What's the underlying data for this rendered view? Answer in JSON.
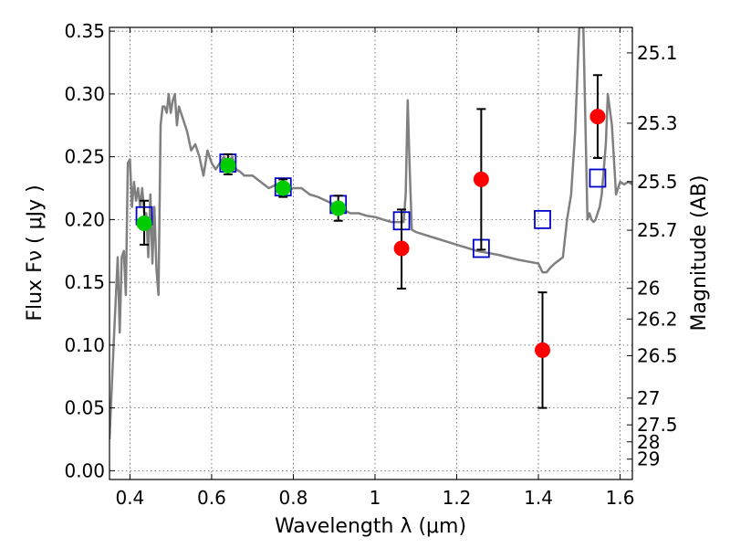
{
  "chart_data": {
    "type": "scatter",
    "title": "",
    "xlabel": "Wavelength  λ (μm)",
    "ylabel": "Flux  Fν  ( μJy )",
    "ylabel_right": "Magnitude (AB)",
    "xlim": [
      0.35,
      1.63
    ],
    "ylim": [
      -0.007,
      0.353
    ],
    "xticks": [
      0.4,
      0.6,
      0.8,
      1.0,
      1.2,
      1.4,
      1.6
    ],
    "xtick_labels": [
      "0.4",
      "0.6",
      "0.8",
      "1",
      "1.2",
      "1.4",
      "1.6"
    ],
    "yticks": [
      0.0,
      0.05,
      0.1,
      0.15,
      0.2,
      0.25,
      0.3,
      0.35
    ],
    "ytick_labels": [
      "0.00",
      "0.05",
      "0.10",
      "0.15",
      "0.20",
      "0.25",
      "0.30",
      "0.35"
    ],
    "right_ticks": [
      {
        "label": "25.1",
        "flux": 0.3327
      },
      {
        "label": "25.3",
        "flux": 0.2767
      },
      {
        "label": "25.5",
        "flux": 0.2302
      },
      {
        "label": "25.7",
        "flux": 0.1915
      },
      {
        "label": "26",
        "flux": 0.1452
      },
      {
        "label": "26.2",
        "flux": 0.1208
      },
      {
        "label": "26.5",
        "flux": 0.0916
      },
      {
        "label": "27",
        "flux": 0.0578
      },
      {
        "label": "27.5",
        "flux": 0.0365
      },
      {
        "label": "28",
        "flux": 0.023
      },
      {
        "label": "29",
        "flux": 0.0092
      }
    ],
    "grid": true,
    "series": [
      {
        "kind": "line",
        "color": "#808080",
        "x": [
          0.35,
          0.36,
          0.37,
          0.375,
          0.38,
          0.385,
          0.39,
          0.395,
          0.4,
          0.405,
          0.41,
          0.415,
          0.42,
          0.425,
          0.43,
          0.435,
          0.44,
          0.445,
          0.45,
          0.455,
          0.46,
          0.465,
          0.47,
          0.475,
          0.48,
          0.485,
          0.49,
          0.495,
          0.5,
          0.505,
          0.51,
          0.515,
          0.52,
          0.53,
          0.54,
          0.55,
          0.56,
          0.57,
          0.58,
          0.59,
          0.6,
          0.61,
          0.62,
          0.63,
          0.64,
          0.65,
          0.66,
          0.67,
          0.68,
          0.7,
          0.72,
          0.74,
          0.76,
          0.78,
          0.8,
          0.82,
          0.84,
          0.86,
          0.88,
          0.9,
          0.92,
          0.94,
          0.96,
          0.98,
          1.0,
          1.02,
          1.04,
          1.06,
          1.07,
          1.075,
          1.08,
          1.085,
          1.09,
          1.1,
          1.15,
          1.2,
          1.25,
          1.3,
          1.35,
          1.4,
          1.41,
          1.42,
          1.43,
          1.44,
          1.46,
          1.47,
          1.48,
          1.49,
          1.5,
          1.51,
          1.52,
          1.525,
          1.53,
          1.535,
          1.54,
          1.545,
          1.55,
          1.555,
          1.56,
          1.565,
          1.57,
          1.58,
          1.59,
          1.6,
          1.61,
          1.62,
          1.63
        ],
        "y": [
          0.025,
          0.1,
          0.17,
          0.11,
          0.17,
          0.175,
          0.14,
          0.245,
          0.248,
          0.21,
          0.23,
          0.215,
          0.225,
          0.21,
          0.225,
          0.205,
          0.205,
          0.17,
          0.22,
          0.165,
          0.21,
          0.16,
          0.14,
          0.275,
          0.29,
          0.29,
          0.285,
          0.3,
          0.285,
          0.295,
          0.3,
          0.275,
          0.29,
          0.28,
          0.27,
          0.255,
          0.26,
          0.25,
          0.235,
          0.255,
          0.245,
          0.24,
          0.245,
          0.25,
          0.245,
          0.25,
          0.24,
          0.238,
          0.235,
          0.235,
          0.23,
          0.225,
          0.228,
          0.222,
          0.225,
          0.225,
          0.22,
          0.218,
          0.215,
          0.212,
          0.208,
          0.205,
          0.205,
          0.203,
          0.202,
          0.2,
          0.198,
          0.198,
          0.198,
          0.22,
          0.295,
          0.24,
          0.192,
          0.19,
          0.185,
          0.18,
          0.175,
          0.172,
          0.168,
          0.165,
          0.158,
          0.158,
          0.162,
          0.165,
          0.17,
          0.2,
          0.22,
          0.27,
          0.353,
          0.353,
          0.2,
          0.205,
          0.2,
          0.198,
          0.2,
          0.205,
          0.21,
          0.22,
          0.24,
          0.26,
          0.3,
          0.275,
          0.22,
          0.23,
          0.228,
          0.23,
          0.228
        ]
      },
      {
        "kind": "open-square",
        "color": "#0000cc",
        "x": [
          0.435,
          0.64,
          0.775,
          0.91,
          1.065,
          1.26,
          1.41,
          1.545
        ],
        "y": [
          0.203,
          0.245,
          0.226,
          0.212,
          0.199,
          0.177,
          0.2,
          0.233
        ]
      },
      {
        "kind": "filled-circle",
        "color": "#00cc00",
        "x": [
          0.435,
          0.64,
          0.775,
          0.91
        ],
        "y": [
          0.197,
          0.243,
          0.225,
          0.209
        ],
        "yerr_low": [
          0.18,
          0.236,
          0.218,
          0.199
        ],
        "yerr_high": [
          0.215,
          0.252,
          0.232,
          0.219
        ]
      },
      {
        "kind": "filled-circle",
        "color": "#ff0000",
        "x": [
          1.065,
          1.26,
          1.41,
          1.545
        ],
        "y": [
          0.177,
          0.232,
          0.096,
          0.282
        ],
        "yerr_low": [
          0.145,
          0.176,
          0.05,
          0.249
        ],
        "yerr_high": [
          0.208,
          0.288,
          0.142,
          0.315
        ]
      }
    ]
  }
}
